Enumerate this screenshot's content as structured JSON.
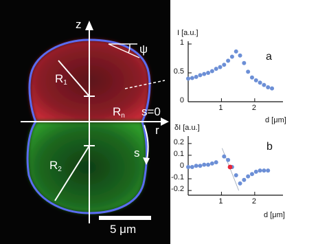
{
  "micrograph": {
    "labels": {
      "z": "z",
      "psi": "ψ",
      "r1": "R",
      "r1_sub": "1",
      "rn": "R",
      "rn_sub": "n",
      "s0": "s=0",
      "r": "r",
      "s": "s",
      "r2": "R",
      "r2_sub": "2"
    },
    "scalebar_label": "5 μm",
    "colors": {
      "top_half": "#c42a36",
      "bottom_half": "#2e9a2a",
      "contour": "#5a6cf0"
    }
  },
  "chart_data": [
    {
      "type": "scatter",
      "panel": "a",
      "xlabel": "d [μm]",
      "ylabel": "I [a.u.]",
      "xlim": [
        0,
        2.85
      ],
      "ylim": [
        0,
        1.0
      ],
      "xticks": [
        1,
        2
      ],
      "yticks": [
        0,
        0.5,
        1
      ],
      "ytick_labels": [
        "0",
        "0.5",
        "1"
      ],
      "x": [
        0.0,
        0.12,
        0.24,
        0.36,
        0.48,
        0.6,
        0.72,
        0.84,
        0.96,
        1.08,
        1.2,
        1.32,
        1.44,
        1.56,
        1.68,
        1.8,
        1.92,
        2.04,
        2.16,
        2.28,
        2.4,
        2.52
      ],
      "y": [
        0.4,
        0.41,
        0.43,
        0.46,
        0.48,
        0.5,
        0.53,
        0.57,
        0.6,
        0.64,
        0.71,
        0.78,
        0.87,
        0.8,
        0.67,
        0.52,
        0.42,
        0.37,
        0.33,
        0.29,
        0.25,
        0.23
      ],
      "colors": {
        "points": "#6c8fd6"
      },
      "grid": false
    },
    {
      "type": "scatter",
      "panel": "b",
      "xlabel": "d [μm]",
      "ylabel": "δI [a.u.]",
      "xlim": [
        0,
        2.85
      ],
      "ylim": [
        -0.24,
        0.24
      ],
      "xticks": [
        1,
        2
      ],
      "yticks": [
        0.2,
        0.1,
        0,
        -0.1,
        -0.2
      ],
      "ytick_labels": [
        "0.2",
        "0.1",
        "0",
        "-0.1",
        "-0.2"
      ],
      "x": [
        0.0,
        0.12,
        0.24,
        0.36,
        0.48,
        0.6,
        0.72,
        0.84,
        1.08,
        1.2,
        1.32,
        1.44,
        1.56,
        1.68,
        1.8,
        1.92,
        2.04,
        2.16,
        2.28,
        2.4
      ],
      "y": [
        0.0,
        0.0,
        0.01,
        0.01,
        0.02,
        0.02,
        0.03,
        0.04,
        0.09,
        0.06,
        0.0,
        -0.07,
        -0.14,
        -0.11,
        -0.08,
        -0.06,
        -0.04,
        -0.03,
        -0.03,
        -0.03
      ],
      "highlight_point": {
        "x": 1.26,
        "y": 0.0
      },
      "tangent_line": {
        "x": [
          1.02,
          1.52
        ],
        "y": [
          0.16,
          -0.2
        ]
      },
      "colors": {
        "points": "#6c8fd6",
        "highlight": "#e8263a",
        "tangent": "#ffffff"
      },
      "grid": false
    }
  ]
}
